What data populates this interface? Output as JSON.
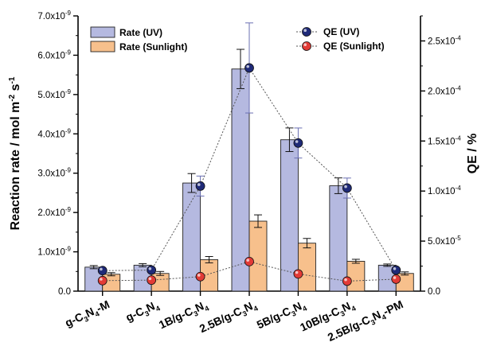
{
  "chart_data": {
    "type": "bar",
    "categories": [
      {
        "base": "g-C",
        "sub1": "3",
        "mid": "N",
        "sub2": "4",
        "suffix": "-M"
      },
      {
        "base": "g-C",
        "sub1": "3",
        "mid": "N",
        "sub2": "4",
        "suffix": ""
      },
      {
        "base": "1B/g-C",
        "sub1": "3",
        "mid": "N",
        "sub2": "4",
        "suffix": ""
      },
      {
        "base": "2.5B/g-C",
        "sub1": "3",
        "mid": "N",
        "sub2": "4",
        "suffix": ""
      },
      {
        "base": "5B/g-C",
        "sub1": "3",
        "mid": "N",
        "sub2": "4",
        "suffix": ""
      },
      {
        "base": "10B/g-C",
        "sub1": "3",
        "mid": "N",
        "sub2": "4",
        "suffix": ""
      },
      {
        "base": "2.5B/g-C",
        "sub1": "3",
        "mid": "N",
        "sub2": "4",
        "suffix": "-PM"
      }
    ],
    "left_axis": {
      "label_main": "Reaction rate / mol m",
      "label_sup1": "-2",
      "label_mid": " s",
      "label_sup2": "-1",
      "ylim": [
        0,
        7e-09
      ],
      "ticks": [
        {
          "mant": "0.0",
          "exp": ""
        },
        {
          "mant": "1.0x10",
          "exp": "-9"
        },
        {
          "mant": "2.0x10",
          "exp": "-9"
        },
        {
          "mant": "3.0x10",
          "exp": "-9"
        },
        {
          "mant": "4.0x10",
          "exp": "-9"
        },
        {
          "mant": "5.0x10",
          "exp": "-9"
        },
        {
          "mant": "6.0x10",
          "exp": "-9"
        },
        {
          "mant": "7.0x10",
          "exp": "-9"
        }
      ],
      "tick_values": [
        0,
        1e-09,
        2e-09,
        3e-09,
        4e-09,
        5e-09,
        6e-09,
        7e-09
      ]
    },
    "right_axis": {
      "label": "QE / %",
      "ylim": [
        0,
        0.000275
      ],
      "ticks": [
        {
          "mant": "0.0",
          "exp": ""
        },
        {
          "mant": "5.0x10",
          "exp": "-5"
        },
        {
          "mant": "1.0x10",
          "exp": "-4"
        },
        {
          "mant": "1.5x10",
          "exp": "-4"
        },
        {
          "mant": "2.0x10",
          "exp": "-4"
        },
        {
          "mant": "2.5x10",
          "exp": "-4"
        }
      ],
      "tick_values": [
        0,
        5e-05,
        0.0001,
        0.00015,
        0.0002,
        0.00025
      ]
    },
    "bar_series": [
      {
        "name": "Rate (UV)",
        "color": "#b5b9e0",
        "values": [
          6.1e-10,
          6.6e-10,
          2.75e-09,
          5.65e-09,
          3.85e-09,
          2.68e-09,
          6.6e-10
        ],
        "errors": [
          4e-11,
          4e-11,
          2.4e-10,
          5e-10,
          3e-10,
          2e-10,
          3e-11
        ]
      },
      {
        "name": "Rate (Sunlight)",
        "color": "#f7c08c",
        "values": [
          4.3e-10,
          4.5e-10,
          8e-10,
          1.78e-09,
          1.22e-09,
          7.6e-10,
          4.5e-10
        ],
        "errors": [
          4e-11,
          5e-11,
          8e-11,
          1.6e-10,
          1.2e-10,
          5e-11,
          4e-11
        ]
      }
    ],
    "line_series": [
      {
        "name": "QE (UV)",
        "color": "#1f2a78",
        "values": [
          2.05e-05,
          2.1e-05,
          0.000105,
          0.000223,
          0.000148,
          0.000103,
          2.1e-05
        ],
        "errors": [
          1e-06,
          1e-06,
          1e-05,
          4.5e-05,
          1.5e-05,
          1e-05,
          1e-06
        ]
      },
      {
        "name": "QE (Sunlight)",
        "color": "#e23b36",
        "values": [
          1.05e-05,
          1.1e-05,
          1.45e-05,
          2.95e-05,
          1.72e-05,
          1e-05,
          1.2e-05
        ],
        "errors": [
          5e-07,
          5e-07,
          5e-07,
          1e-06,
          5e-07,
          5e-07,
          5e-07
        ]
      }
    ],
    "legend_left": "top-left",
    "legend_right": "top-right",
    "grid": false
  }
}
